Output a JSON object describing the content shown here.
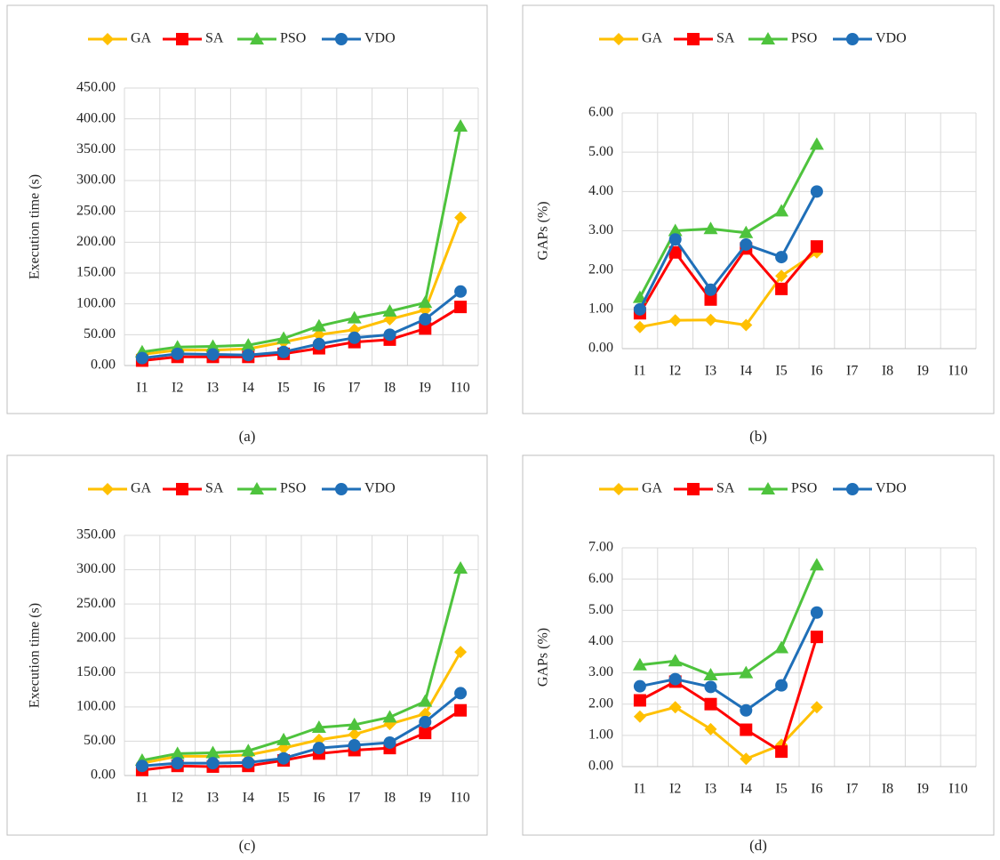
{
  "chart_data": [
    {
      "type": "line",
      "caption": "(a)",
      "y_label": "Execution time (s)",
      "categories": [
        "I1",
        "I2",
        "I3",
        "I4",
        "I5",
        "I6",
        "I7",
        "I8",
        "I9",
        "I10"
      ],
      "ylim": [
        0,
        450
      ],
      "yticks": [
        {
          "value": 0,
          "label": "0.00"
        },
        {
          "value": 50,
          "label": "50.00"
        },
        {
          "value": 100,
          "label": "100.00"
        },
        {
          "value": 150,
          "label": "150.00"
        },
        {
          "value": 200,
          "label": "200.00"
        },
        {
          "value": 250,
          "label": "250.00"
        },
        {
          "value": 300,
          "label": "300.00"
        },
        {
          "value": 350,
          "label": "350.00"
        },
        {
          "value": 400,
          "label": "400.00"
        },
        {
          "value": 450,
          "label": "450.00"
        }
      ],
      "grid": true,
      "legend": "top",
      "series": [
        {
          "name": "GA",
          "color": "#ffc000",
          "marker": "diamond",
          "values": [
            18,
            25,
            25,
            27,
            38,
            50,
            58,
            75,
            90,
            240
          ]
        },
        {
          "name": "SA",
          "color": "#ff0000",
          "marker": "square",
          "values": [
            8,
            14,
            14,
            14,
            19,
            28,
            38,
            42,
            60,
            95
          ]
        },
        {
          "name": "PSO",
          "color": "#4ec33d",
          "marker": "triangle",
          "values": [
            22,
            30,
            31,
            33,
            44,
            64,
            77,
            88,
            102,
            388
          ]
        },
        {
          "name": "VDO",
          "color": "#1f6fb8",
          "marker": "circle",
          "values": [
            12,
            19,
            18,
            17,
            22,
            35,
            45,
            50,
            75,
            120
          ]
        }
      ]
    },
    {
      "type": "line",
      "caption": "(b)",
      "y_label": "GAPs (%)",
      "categories": [
        "I1",
        "I2",
        "I3",
        "I4",
        "I5",
        "I6",
        "I7",
        "I8",
        "I9",
        "I10"
      ],
      "ylim": [
        0,
        6
      ],
      "yticks": [
        {
          "value": 0,
          "label": "0.00"
        },
        {
          "value": 1,
          "label": "1.00"
        },
        {
          "value": 2,
          "label": "2.00"
        },
        {
          "value": 3,
          "label": "3.00"
        },
        {
          "value": 4,
          "label": "4.00"
        },
        {
          "value": 5,
          "label": "5.00"
        },
        {
          "value": 6,
          "label": "6.00"
        }
      ],
      "grid": true,
      "legend": "top",
      "series": [
        {
          "name": "GA",
          "color": "#ffc000",
          "marker": "diamond",
          "values": [
            0.55,
            0.72,
            0.73,
            0.6,
            1.85,
            2.45,
            null,
            null,
            null,
            null
          ]
        },
        {
          "name": "SA",
          "color": "#ff0000",
          "marker": "square",
          "values": [
            0.9,
            2.45,
            1.25,
            2.55,
            1.52,
            2.6,
            null,
            null,
            null,
            null
          ]
        },
        {
          "name": "PSO",
          "color": "#4ec33d",
          "marker": "triangle",
          "values": [
            1.3,
            3.0,
            3.05,
            2.95,
            3.5,
            5.2,
            null,
            null,
            null,
            null
          ]
        },
        {
          "name": "VDO",
          "color": "#1f6fb8",
          "marker": "circle",
          "values": [
            1.0,
            2.78,
            1.5,
            2.65,
            2.33,
            4.0,
            null,
            null,
            null,
            null
          ]
        }
      ]
    },
    {
      "type": "line",
      "caption": "(c)",
      "y_label": "Execution time (s)",
      "categories": [
        "I1",
        "I2",
        "I3",
        "I4",
        "I5",
        "I6",
        "I7",
        "I8",
        "I9",
        "I10"
      ],
      "ylim": [
        0,
        350
      ],
      "yticks": [
        {
          "value": 0,
          "label": "0.00"
        },
        {
          "value": 50,
          "label": "50.00"
        },
        {
          "value": 100,
          "label": "100.00"
        },
        {
          "value": 150,
          "label": "150.00"
        },
        {
          "value": 200,
          "label": "200.00"
        },
        {
          "value": 250,
          "label": "250.00"
        },
        {
          "value": 300,
          "label": "300.00"
        },
        {
          "value": 350,
          "label": "350.00"
        }
      ],
      "grid": true,
      "legend": "top",
      "series": [
        {
          "name": "GA",
          "color": "#ffc000",
          "marker": "diamond",
          "values": [
            18,
            28,
            28,
            30,
            40,
            52,
            60,
            75,
            90,
            180
          ]
        },
        {
          "name": "SA",
          "color": "#ff0000",
          "marker": "square",
          "values": [
            8,
            14,
            13,
            14,
            22,
            32,
            37,
            40,
            62,
            95
          ]
        },
        {
          "name": "PSO",
          "color": "#4ec33d",
          "marker": "triangle",
          "values": [
            22,
            32,
            33,
            36,
            52,
            70,
            74,
            85,
            108,
            302
          ]
        },
        {
          "name": "VDO",
          "color": "#1f6fb8",
          "marker": "circle",
          "values": [
            14,
            18,
            18,
            19,
            25,
            40,
            44,
            48,
            78,
            120
          ]
        }
      ]
    },
    {
      "type": "line",
      "caption": "(d)",
      "y_label": "GAPs (%)",
      "categories": [
        "I1",
        "I2",
        "I3",
        "I4",
        "I5",
        "I6",
        "I7",
        "I8",
        "I9",
        "I10"
      ],
      "ylim": [
        0,
        7
      ],
      "yticks": [
        {
          "value": 0,
          "label": "0.00"
        },
        {
          "value": 1,
          "label": "1.00"
        },
        {
          "value": 2,
          "label": "2.00"
        },
        {
          "value": 3,
          "label": "3.00"
        },
        {
          "value": 4,
          "label": "4.00"
        },
        {
          "value": 5,
          "label": "5.00"
        },
        {
          "value": 6,
          "label": "6.00"
        },
        {
          "value": 7,
          "label": "7.00"
        }
      ],
      "grid": true,
      "legend": "top",
      "series": [
        {
          "name": "GA",
          "color": "#ffc000",
          "marker": "diamond",
          "values": [
            1.6,
            1.9,
            1.2,
            0.25,
            0.7,
            1.9,
            null,
            null,
            null,
            null
          ]
        },
        {
          "name": "SA",
          "color": "#ff0000",
          "marker": "square",
          "values": [
            2.12,
            2.72,
            2.0,
            1.18,
            0.48,
            4.15,
            null,
            null,
            null,
            null
          ]
        },
        {
          "name": "PSO",
          "color": "#4ec33d",
          "marker": "triangle",
          "values": [
            3.25,
            3.38,
            2.93,
            3.0,
            3.8,
            6.45,
            null,
            null,
            null,
            null
          ]
        },
        {
          "name": "VDO",
          "color": "#1f6fb8",
          "marker": "circle",
          "values": [
            2.57,
            2.8,
            2.55,
            1.8,
            2.6,
            4.93,
            null,
            null,
            null,
            null
          ]
        }
      ]
    }
  ]
}
